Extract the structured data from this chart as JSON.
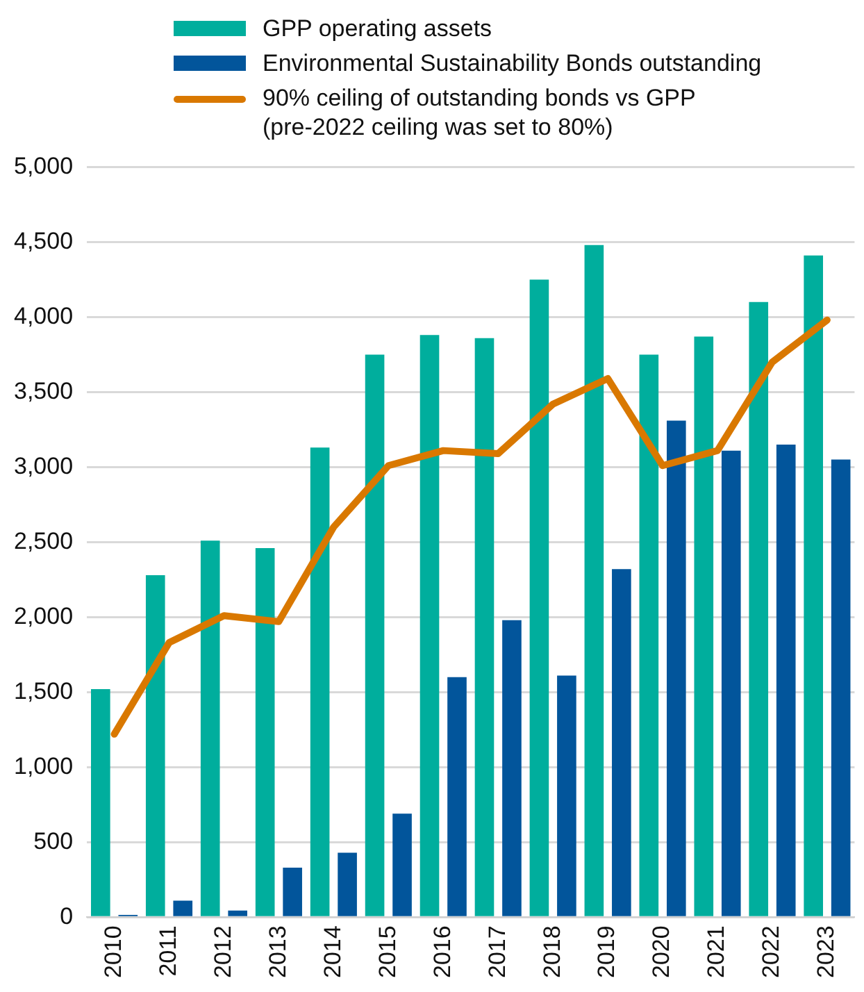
{
  "chart_data": {
    "type": "bar",
    "categories": [
      "2010",
      "2011",
      "2012",
      "2013",
      "2014",
      "2015",
      "2016",
      "2017",
      "2018",
      "2019",
      "2020",
      "2021",
      "2022",
      "2023"
    ],
    "series": [
      {
        "name": "GPP operating assets",
        "color": "#00ae9d",
        "values": [
          1520,
          2280,
          2510,
          2460,
          3130,
          3750,
          3880,
          3860,
          4250,
          4480,
          3750,
          3870,
          4100,
          4410
        ]
      },
      {
        "name": "Environmental Sustainability Bonds outstanding",
        "color": "#02559b",
        "values": [
          15,
          110,
          45,
          330,
          430,
          690,
          1600,
          1980,
          1610,
          2320,
          3310,
          3110,
          3150,
          3050
        ]
      },
      {
        "name": "90% ceiling of outstanding bonds vs GPP\n(pre-2022 ceiling was set to 80%)",
        "type": "line",
        "color": "#d97800",
        "values": [
          1220,
          1830,
          2010,
          1970,
          2600,
          3010,
          3110,
          3090,
          3420,
          3590,
          3010,
          3110,
          3700,
          3980
        ]
      }
    ],
    "ylim": [
      0,
      5000
    ],
    "yticks": [
      {
        "value": 0,
        "label": "0"
      },
      {
        "value": 500,
        "label": "500"
      },
      {
        "value": 1000,
        "label": "1,000"
      },
      {
        "value": 1500,
        "label": "1,500"
      },
      {
        "value": 2000,
        "label": "2,000"
      },
      {
        "value": 2500,
        "label": "2,500"
      },
      {
        "value": 3000,
        "label": "3,000"
      },
      {
        "value": 3500,
        "label": "3,500"
      },
      {
        "value": 4000,
        "label": "4,000"
      },
      {
        "value": 4500,
        "label": "4,500"
      },
      {
        "value": 5000,
        "label": "5,000"
      }
    ],
    "grid": "y",
    "legend": "top",
    "marker": "none",
    "line_style": "solid"
  }
}
